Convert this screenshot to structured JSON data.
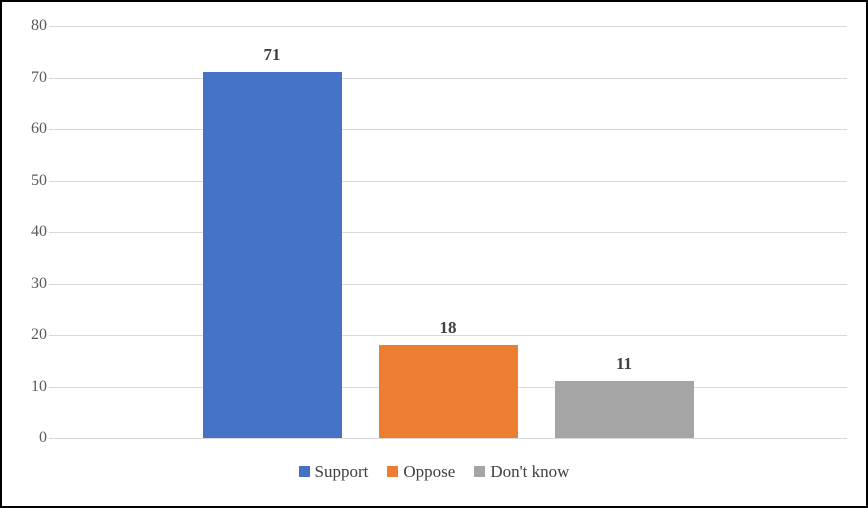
{
  "chart_data": {
    "type": "bar",
    "categories": [
      ""
    ],
    "series": [
      {
        "name": "Support",
        "values": [
          71
        ],
        "color": "#4472C4"
      },
      {
        "name": "Oppose",
        "values": [
          18
        ],
        "color": "#ED7D31"
      },
      {
        "name": "Don't know",
        "values": [
          11
        ],
        "color": "#A5A5A5"
      }
    ],
    "title": "",
    "xlabel": "",
    "ylabel": "",
    "ylim": [
      0,
      80
    ],
    "yticks": [
      0,
      10,
      20,
      30,
      40,
      50,
      60,
      70,
      80
    ],
    "grid": true,
    "data_labels": true,
    "legend_position": "bottom"
  },
  "colors": {
    "gridline": "#d9d9d9",
    "axis_text": "#595959",
    "data_label_text": "#404040",
    "legend_text": "#404040",
    "background": "#ffffff",
    "frame_border": "#000000"
  }
}
